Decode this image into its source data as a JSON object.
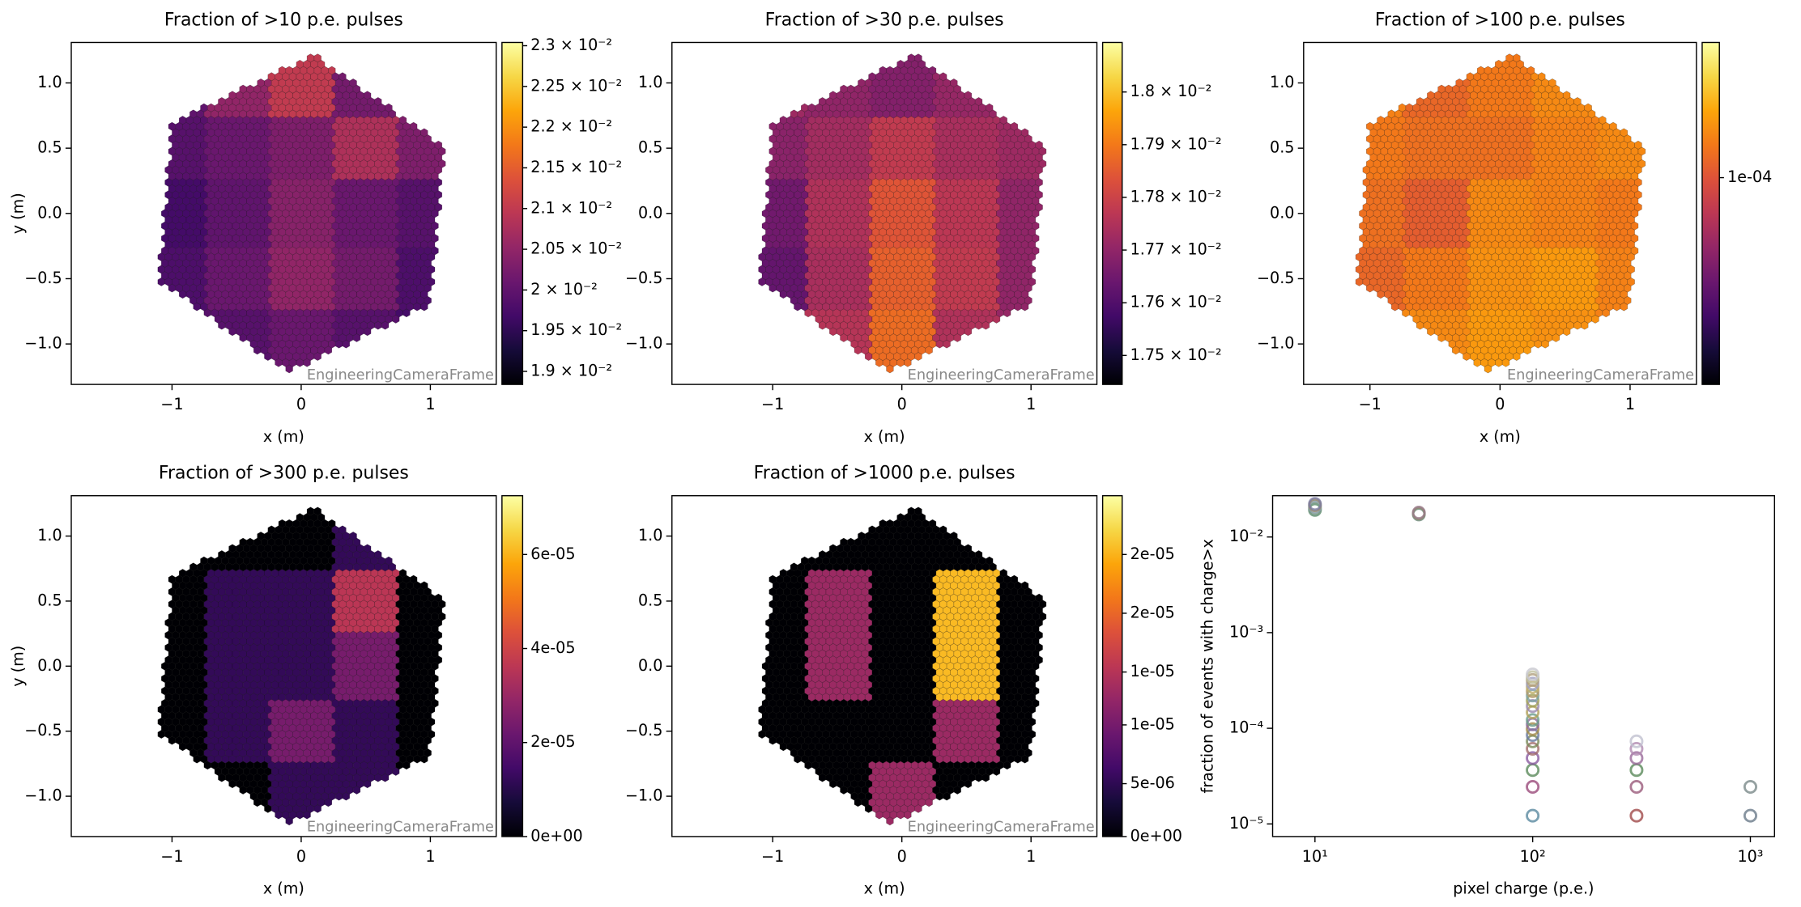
{
  "chart_data": [
    {
      "type": "camera",
      "title": "Fraction of >10 p.e. pulses",
      "xlabel": "x  (m)",
      "ylabel": "y (m)",
      "frame_label": "EngineeringCameraFrame",
      "xlim": [
        -1.78,
        1.51
      ],
      "ylim": [
        -1.31,
        1.31
      ],
      "xticks": [
        {
          "value": -1,
          "label": "−1"
        },
        0,
        1
      ],
      "yticks": [
        {
          "value": 1,
          "label": "1.0"
        },
        {
          "value": 0.5,
          "label": "0.5"
        },
        {
          "value": 0,
          "label": "0.0"
        },
        {
          "value": -0.5,
          "label": "−0.5"
        },
        {
          "value": -1,
          "label": "−1.0"
        }
      ],
      "colormap": "inferno",
      "clim": [
        0.01884,
        0.02304
      ],
      "clog": false,
      "cticks": [
        {
          "value": 0.019,
          "label": "1.9 × 10⁻²"
        },
        {
          "value": 0.0195,
          "label": "1.95 × 10⁻²"
        },
        {
          "value": 0.02,
          "label": "2 × 10⁻²"
        },
        {
          "value": 0.0205,
          "label": "2.05 × 10⁻²"
        },
        {
          "value": 0.021,
          "label": "2.1 × 10⁻²"
        },
        {
          "value": 0.0215,
          "label": "2.15 × 10⁻²"
        },
        {
          "value": 0.022,
          "label": "2.2 × 10⁻²"
        },
        {
          "value": 0.0225,
          "label": "2.25 × 10⁻²"
        },
        {
          "value": 0.023,
          "label": "2.3 × 10⁻²"
        }
      ],
      "grid_values": [
        [
          0.02,
          0.0205,
          0.021,
          0.0202,
          0.02
        ],
        [
          0.0199,
          0.0201,
          0.0203,
          0.0208,
          0.0203
        ],
        [
          0.0197,
          0.02,
          0.0204,
          0.0201,
          0.0199
        ],
        [
          0.0198,
          0.0201,
          0.0205,
          0.0202,
          0.0198
        ],
        [
          0.0196,
          0.0199,
          0.0201,
          0.0199,
          0.0197
        ]
      ]
    },
    {
      "type": "camera",
      "title": "Fraction of >30 p.e. pulses",
      "xlabel": "x  (m)",
      "frame_label": "EngineeringCameraFrame",
      "xlim": [
        -1.78,
        1.51
      ],
      "ylim": [
        -1.31,
        1.31
      ],
      "xticks": [
        {
          "value": -1,
          "label": "−1"
        },
        0,
        1
      ],
      "yticks": [
        {
          "value": 1,
          "label": "1.0"
        },
        {
          "value": 0.5,
          "label": "0.5"
        },
        {
          "value": 0,
          "label": "0.0"
        },
        {
          "value": -0.5,
          "label": "−0.5"
        },
        {
          "value": -1,
          "label": "−1.0"
        }
      ],
      "colormap": "inferno",
      "clim": [
        0.017445,
        0.018094
      ],
      "clog": false,
      "cticks": [
        {
          "value": 0.0175,
          "label": "1.75 × 10⁻²"
        },
        {
          "value": 0.0176,
          "label": "1.76 × 10⁻²"
        },
        {
          "value": 0.0177,
          "label": "1.77 × 10⁻²"
        },
        {
          "value": 0.0178,
          "label": "1.78 × 10⁻²"
        },
        {
          "value": 0.0179,
          "label": "1.79 × 10⁻²"
        },
        {
          "value": 0.018,
          "label": "1.8 × 10⁻²"
        }
      ],
      "grid_values": [
        [
          0.01772,
          0.0177,
          0.01768,
          0.01771,
          0.0177
        ],
        [
          0.01769,
          0.01773,
          0.01778,
          0.01774,
          0.01772
        ],
        [
          0.01765,
          0.01775,
          0.01784,
          0.01777,
          0.0177
        ],
        [
          0.01763,
          0.01774,
          0.01786,
          0.01778,
          0.0177
        ],
        [
          0.01768,
          0.01776,
          0.01788,
          0.01775,
          0.01771
        ]
      ]
    },
    {
      "type": "camera",
      "title": "Fraction of >100 p.e. pulses",
      "xlabel": "x  (m)",
      "frame_label": "EngineeringCameraFrame",
      "xlim": [
        -1.51,
        1.51
      ],
      "ylim": [
        -1.31,
        1.31
      ],
      "xticks": [
        {
          "value": -1,
          "label": "−1"
        },
        0,
        1
      ],
      "yticks": [
        {
          "value": 1,
          "label": "1.0"
        },
        {
          "value": 0.5,
          "label": "0.5"
        },
        {
          "value": 0,
          "label": "0.0"
        },
        {
          "value": -0.5,
          "label": "−0.5"
        },
        {
          "value": -1,
          "label": "−1.0"
        }
      ],
      "colormap": "inferno",
      "clim": [
        1.2e-05,
        0.0004
      ],
      "clog": true,
      "cticks": [
        {
          "value": 0.0001,
          "label": "1e-04"
        }
      ],
      "grid_values": [
        [
          0.00015,
          0.00012,
          0.00014,
          0.00016,
          0.00015
        ],
        [
          0.00014,
          0.00013,
          0.00013,
          0.00015,
          0.00016
        ],
        [
          0.00013,
          0.00011,
          0.00016,
          0.00015,
          0.00014
        ],
        [
          0.00012,
          0.00014,
          0.00017,
          0.00018,
          0.00015
        ],
        [
          0.00015,
          0.00016,
          0.00018,
          0.00017,
          0.00015
        ]
      ]
    },
    {
      "type": "camera",
      "title": "Fraction of >300 p.e. pulses",
      "xlabel": "x  (m)",
      "ylabel": "y (m)",
      "frame_label": "EngineeringCameraFrame",
      "xlim": [
        -1.78,
        1.51
      ],
      "ylim": [
        -1.31,
        1.31
      ],
      "xticks": [
        {
          "value": -1,
          "label": "−1"
        },
        0,
        1
      ],
      "yticks": [
        {
          "value": 1,
          "label": "1.0"
        },
        {
          "value": 0.5,
          "label": "0.5"
        },
        {
          "value": 0,
          "label": "0.0"
        },
        {
          "value": -0.5,
          "label": "−0.5"
        },
        {
          "value": -1,
          "label": "−1.0"
        }
      ],
      "colormap": "inferno",
      "clim": [
        0,
        7.25e-05
      ],
      "clog": false,
      "cticks": [
        {
          "value": 0,
          "label": "0e+00"
        },
        {
          "value": 2e-05,
          "label": "2e-05"
        },
        {
          "value": 4e-05,
          "label": "4e-05"
        },
        {
          "value": 6e-05,
          "label": "6e-05"
        }
      ],
      "grid_values": [
        [
          0,
          0,
          0,
          1.2e-05,
          0
        ],
        [
          0,
          1.2e-05,
          1.2e-05,
          3.6e-05,
          0
        ],
        [
          0,
          1.2e-05,
          1.2e-05,
          2.4e-05,
          0
        ],
        [
          0,
          1.2e-05,
          2.4e-05,
          1.2e-05,
          0
        ],
        [
          0,
          0,
          1.2e-05,
          1.2e-05,
          0
        ]
      ]
    },
    {
      "type": "camera",
      "title": "Fraction of >1000 p.e. pulses",
      "xlabel": "x  (m)",
      "frame_label": "EngineeringCameraFrame",
      "xlim": [
        -1.78,
        1.51
      ],
      "ylim": [
        -1.31,
        1.31
      ],
      "xticks": [
        {
          "value": -1,
          "label": "−1"
        },
        0,
        1
      ],
      "yticks": [
        {
          "value": 1,
          "label": "1.0"
        },
        {
          "value": 0.5,
          "label": "0.5"
        },
        {
          "value": 0,
          "label": "0.0"
        },
        {
          "value": -0.5,
          "label": "−0.5"
        },
        {
          "value": -1,
          "label": "−1.0"
        }
      ],
      "colormap": "inferno",
      "clim": [
        0,
        2.9e-05
      ],
      "clog": false,
      "cticks": [
        {
          "value": 0,
          "label": "0e+00"
        },
        {
          "value": 4.5e-06,
          "label": "5e-06"
        },
        {
          "value": 9.5e-06,
          "label": "1e-05"
        },
        {
          "value": 1.4e-05,
          "label": "1e-05"
        },
        {
          "value": 1.9e-05,
          "label": "2e-05"
        },
        {
          "value": 2.4e-05,
          "label": "2e-05"
        }
      ],
      "grid_values": [
        [
          0,
          0,
          0,
          0,
          0
        ],
        [
          0,
          1.22e-05,
          0,
          2.44e-05,
          0
        ],
        [
          0,
          1.22e-05,
          0,
          2.44e-05,
          0
        ],
        [
          0,
          0,
          0,
          1.22e-05,
          0
        ],
        [
          0,
          0,
          1.22e-05,
          0,
          0
        ]
      ]
    },
    {
      "type": "scatter",
      "xlabel": "pixel charge (p.e.)",
      "ylabel": "fraction of events with charge>x",
      "xlog": true,
      "ylog": true,
      "xlim": [
        6.39,
        1291
      ],
      "ylim": [
        7.38e-06,
        0.027
      ],
      "xticks": [
        {
          "value": 10,
          "label": "10¹"
        },
        {
          "value": 100,
          "label": "10²"
        },
        {
          "value": 1000,
          "label": "10³"
        }
      ],
      "yticks": [
        {
          "value": 1e-05,
          "label": "10⁻⁵"
        },
        {
          "value": 0.0001,
          "label": "10⁻⁴"
        },
        {
          "value": 0.001,
          "label": "10⁻³"
        },
        {
          "value": 0.01,
          "label": "10⁻²"
        }
      ],
      "x": [
        10,
        10,
        10,
        10,
        10,
        30,
        30,
        30,
        100,
        100,
        100,
        100,
        100,
        100,
        100,
        100,
        100,
        100,
        100,
        100,
        100,
        100,
        100,
        100,
        100,
        100,
        100,
        100,
        300,
        300,
        300,
        300,
        300,
        300,
        1000,
        1000
      ],
      "y": [
        0.0192,
        0.02,
        0.0208,
        0.0215,
        0.0222,
        0.0172,
        0.0176,
        0.018,
        1.22e-05,
        2.44e-05,
        3.66e-05,
        4.88e-05,
        6.1e-05,
        7.3e-05,
        8.5e-05,
        9.8e-05,
        0.00011,
        0.000122,
        0.000147,
        0.000171,
        0.000195,
        0.00022,
        0.000244,
        0.00027,
        0.000293,
        0.00032,
        0.000342,
        0.000366,
        1.22e-05,
        2.44e-05,
        3.66e-05,
        4.88e-05,
        6.1e-05,
        7.3e-05,
        1.22e-05,
        2.44e-05
      ],
      "colors": [
        "#5a8a6a",
        "#7a9a8a",
        "#8fa0b0",
        "#9a8a6a",
        "#7a7aa0",
        "#6a8a7a",
        "#8a8a6a",
        "#9a7a8a",
        "#5a8aa0",
        "#9a4a7a",
        "#5a8a5a",
        "#8a5aa0",
        "#a06a6a",
        "#7a8a5a",
        "#6a7aa0",
        "#a08a4a",
        "#8a6a9a",
        "#6a9a8a",
        "#b0a05a",
        "#9a8ab0",
        "#a0a05a",
        "#7aa0a0",
        "#b09a6a",
        "#c0b06a",
        "#a0a0c0",
        "#b0a080",
        "#c0c0a0",
        "#c8c8d0",
        "#a04a4a",
        "#9a5a7a",
        "#5a8a5a",
        "#9a6a9a",
        "#b08ab0",
        "#c0c0d0",
        "#6a7a8a",
        "#7a8a8a"
      ]
    }
  ]
}
